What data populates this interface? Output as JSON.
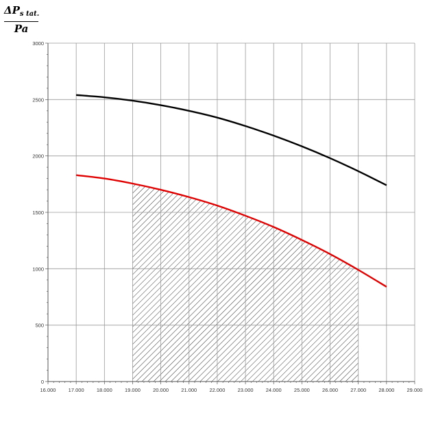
{
  "chart_data": {
    "type": "line",
    "title": "",
    "ylabel": {
      "numerator_main": "ΔP",
      "numerator_sub": "s tat.",
      "denominator": "Pa"
    },
    "xlabel": "",
    "xlim": [
      16,
      29
    ],
    "ylim": [
      0,
      3000
    ],
    "x_ticks": [
      16,
      17,
      18,
      19,
      20,
      21,
      22,
      23,
      24,
      25,
      26,
      27,
      28,
      29
    ],
    "x_tick_labels": [
      "16.000",
      "17.000",
      "18.000",
      "19.000",
      "20.000",
      "21.000",
      "22.000",
      "23.000",
      "24.000",
      "25.000",
      "26.000",
      "27.000",
      "28.000",
      "29.000"
    ],
    "y_ticks": [
      0,
      500,
      1000,
      1500,
      2000,
      2500,
      3000
    ],
    "y_tick_labels": [
      "0",
      "500",
      "1000",
      "1500",
      "2000",
      "2500",
      "3000"
    ],
    "grid": true,
    "series": [
      {
        "color": "#000000",
        "x": [
          17,
          18,
          19,
          20,
          21,
          22,
          23,
          24,
          25,
          26,
          27,
          28
        ],
        "y": [
          2540,
          2520,
          2490,
          2450,
          2400,
          2340,
          2265,
          2180,
          2085,
          1980,
          1865,
          1740
        ]
      },
      {
        "color": "#e00000",
        "x": [
          17,
          18,
          19,
          20,
          21,
          22,
          23,
          24,
          25,
          26,
          27,
          28
        ],
        "y": [
          1830,
          1800,
          1755,
          1700,
          1635,
          1560,
          1470,
          1370,
          1255,
          1130,
          990,
          840
        ]
      }
    ],
    "shaded_region": {
      "x_from": 19,
      "x_to": 27,
      "under_series": 1,
      "pattern": "diagonal-hatch"
    }
  }
}
